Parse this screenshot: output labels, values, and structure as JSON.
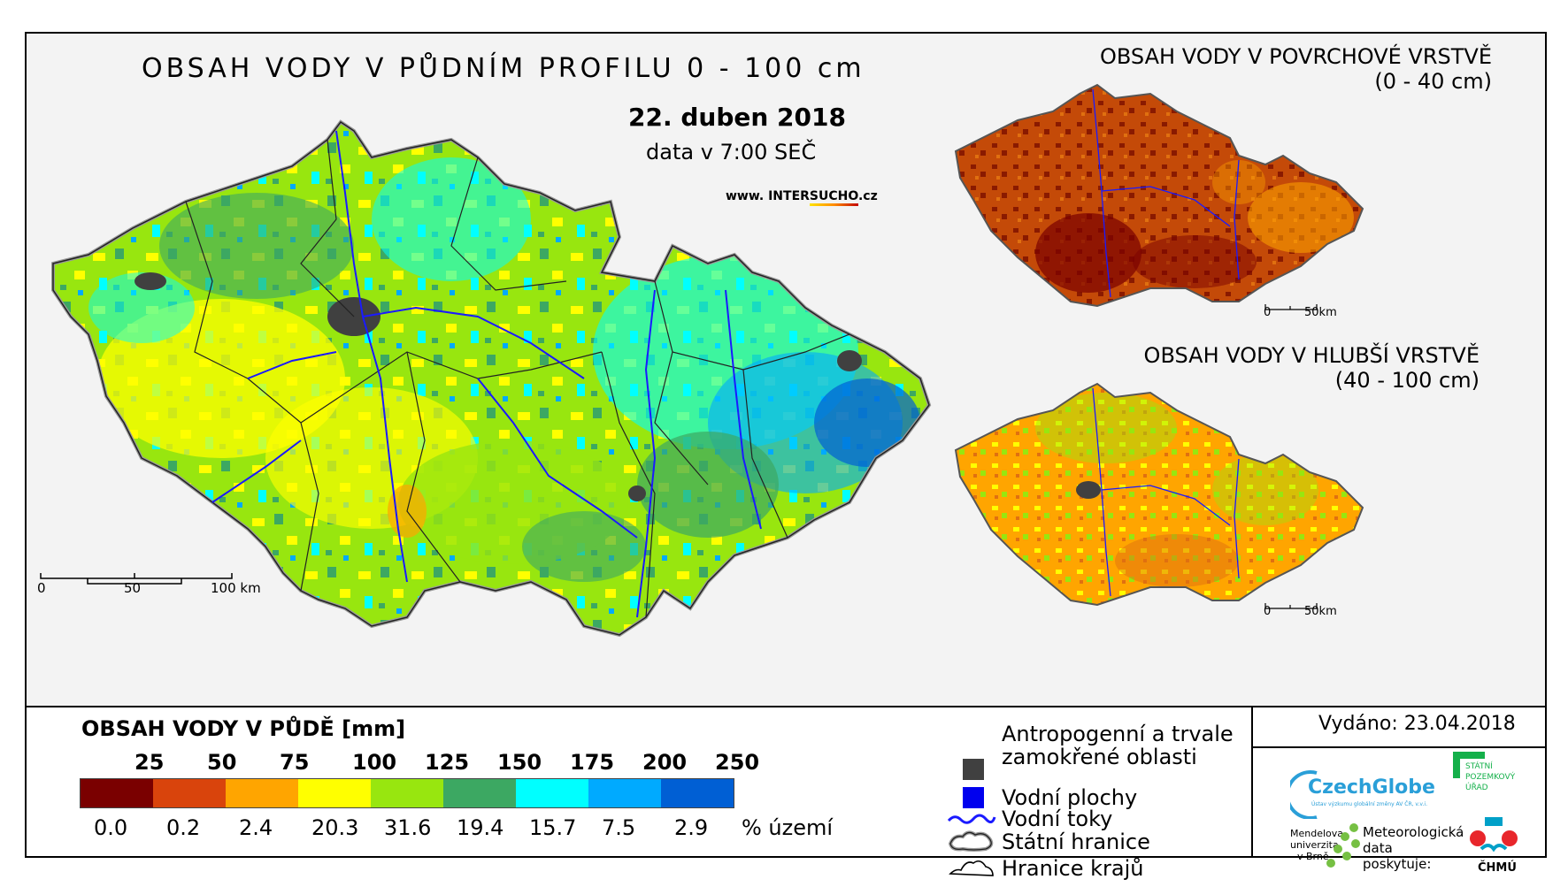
{
  "main": {
    "title": "OBSAH VODY V PŮDNÍM PROFILU 0 - 100 cm",
    "date": "22. duben 2018",
    "time": "data v 7:00 SEČ",
    "web_pre": "www. INTER",
    "web_hl": "SUCHO",
    "web_post": ".cz",
    "scale": [
      "0",
      "50",
      "100 km"
    ]
  },
  "inset_top": {
    "title1": "OBSAH VODY V POVRCHOVÉ VRSTVĚ",
    "title2": "(0 - 40 cm)",
    "scale": [
      "0",
      "50km"
    ]
  },
  "inset_bottom": {
    "title1": "OBSAH VODY V HLUBŠÍ VRSTVĚ",
    "title2": "(40 - 100 cm)",
    "scale": [
      "0",
      "50km"
    ]
  },
  "legend": {
    "title": "OBSAH VODY V PŮDĚ [mm]",
    "thresholds": [
      "25",
      "50",
      "75",
      "100",
      "125",
      "150",
      "175",
      "200",
      "250"
    ],
    "colors": [
      "#7a0000",
      "#d9440c",
      "#ffa500",
      "#ffff00",
      "#98e60f",
      "#3ca862",
      "#00ffff",
      "#00aaff",
      "#005fd4"
    ],
    "percents": [
      "0.0",
      "0.2",
      "2.4",
      "20.3",
      "31.6",
      "19.4",
      "15.7",
      "7.5",
      "2.9"
    ],
    "percent_label": "% území"
  },
  "symbols": {
    "anthro1": "Antropogenní a trvale",
    "anthro2": "zamokřené oblasti",
    "water_bodies": "Vodní plochy",
    "rivers": "Vodní toky",
    "state_border": "Státní hranice",
    "region_border": "Hranice krajů",
    "colors": {
      "anthro": "#404040",
      "water": "#0000ee",
      "river": "#1a1aff"
    }
  },
  "issued": "Vydáno: 23.04.2018",
  "logos": {
    "czechglobe": "CzechGlobe",
    "czechglobe_sub": "Ústav výzkumu globální změny AV ČR, v.v.i.",
    "spu1": "STÁTNÍ",
    "spu2": "POZEMKOVÝ",
    "spu3": "ÚŘAD",
    "mendel1": "Mendelova",
    "mendel2": "univerzita",
    "mendel3": "v Brně",
    "meteo1": "Meteorologická",
    "meteo2": "data",
    "meteo3": "poskytuje:",
    "chmu": "ČHMÚ"
  }
}
